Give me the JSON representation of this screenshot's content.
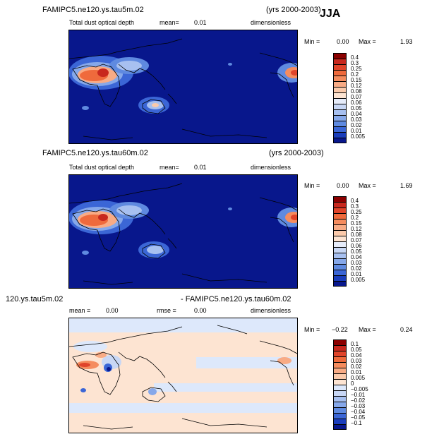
{
  "season": "JJA",
  "panels": [
    {
      "case": "FAMIPC5.ne120.ys.tau5m.02",
      "years": "(yrs 2000-2003)",
      "variable": "Total dust optical depth",
      "stat1_label": "mean=",
      "stat1_value": "0.01",
      "units": "dimensionless",
      "min_label": "Min =",
      "min_value": "0.00",
      "max_label": "Max =",
      "max_value": "1.93",
      "colorbar_labels": [
        "0.4",
        "0.3",
        "0.25",
        "0.2",
        "0.15",
        "0.12",
        "0.08",
        "0.07",
        "0.06",
        "0.05",
        "0.04",
        "0.03",
        "0.02",
        "0.01",
        "0.005"
      ],
      "colorbar_colors": [
        "#8b0000",
        "#c8281e",
        "#e0442a",
        "#ef6a3c",
        "#f58c5e",
        "#f8ab85",
        "#fbcaab",
        "#fde4d2",
        "#e6ecfa",
        "#c8d7f5",
        "#a7c0f0",
        "#86a8ea",
        "#5f8ae0",
        "#3b66d6",
        "#1a3dbc",
        "#08178c"
      ]
    },
    {
      "case": "FAMIPC5.ne120.ys.tau60m.02",
      "years": "(yrs 2000-2003)",
      "variable": "Total dust optical depth",
      "stat1_label": "mean=",
      "stat1_value": "0.01",
      "units": "dimensionless",
      "min_label": "Min =",
      "min_value": "0.00",
      "max_label": "Max =",
      "max_value": "1.69",
      "colorbar_labels": [
        "0.4",
        "0.3",
        "0.25",
        "0.2",
        "0.15",
        "0.12",
        "0.08",
        "0.07",
        "0.06",
        "0.05",
        "0.04",
        "0.03",
        "0.02",
        "0.01",
        "0.005"
      ],
      "colorbar_colors": [
        "#8b0000",
        "#c8281e",
        "#e0442a",
        "#ef6a3c",
        "#f58c5e",
        "#f8ab85",
        "#fbcaab",
        "#fde4d2",
        "#e6ecfa",
        "#c8d7f5",
        "#a7c0f0",
        "#86a8ea",
        "#5f8ae0",
        "#3b66d6",
        "#1a3dbc",
        "#08178c"
      ]
    },
    {
      "case_left": "120.ys.tau5m.02",
      "case_right": "- FAMIPC5.ne120.ys.tau60m.02",
      "stat1_label": "mean =",
      "stat1_value": "0.00",
      "stat2_label": "rmse =",
      "stat2_value": "0.00",
      "units": "dimensionless",
      "min_label": "Min =",
      "min_value": "−0.22",
      "max_label": "Max =",
      "max_value": "0.24",
      "colorbar_labels": [
        "0.1",
        "0.05",
        "0.04",
        "0.03",
        "0.02",
        "0.01",
        "0.005",
        "0",
        "−0.005",
        "−0.01",
        "−0.02",
        "−0.03",
        "−0.04",
        "−0.05",
        "−0.1"
      ],
      "colorbar_colors": [
        "#8b0000",
        "#c8281e",
        "#e0442a",
        "#ef6a3c",
        "#f58c5e",
        "#f8ab85",
        "#fbcaab",
        "#fde4d2",
        "#dde8fb",
        "#c8d7f5",
        "#a7c0f0",
        "#86a8ea",
        "#5f8ae0",
        "#3b66d6",
        "#1a3dbc",
        "#08178c"
      ]
    }
  ]
}
